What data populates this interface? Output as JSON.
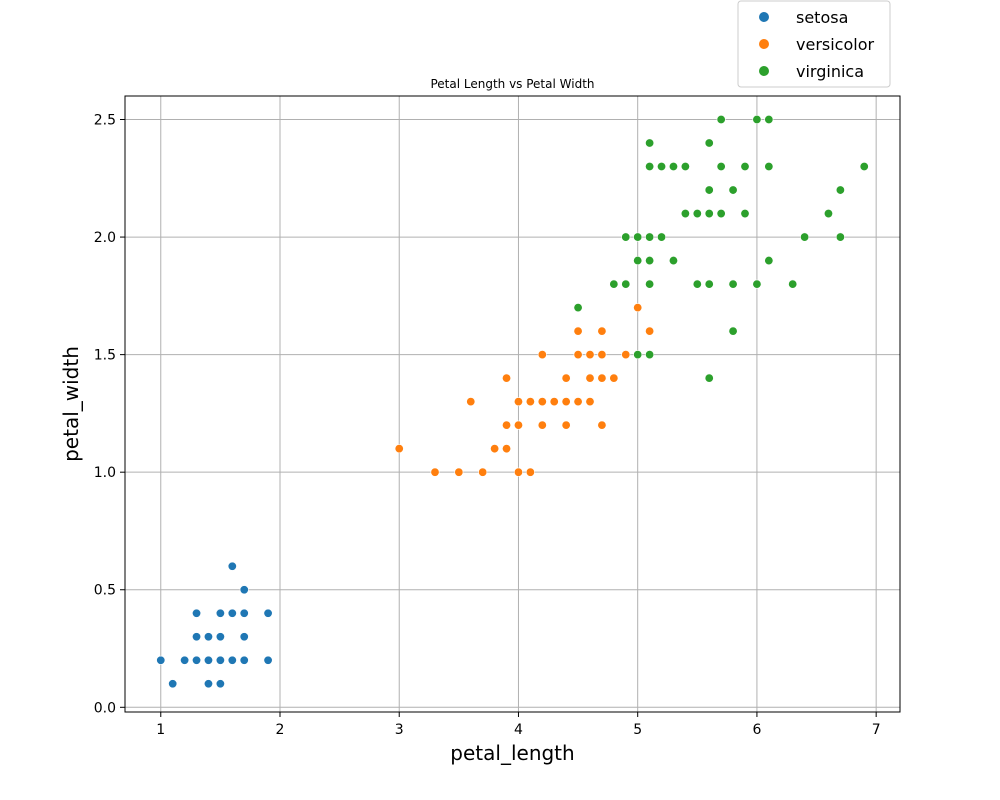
{
  "chart_data": {
    "type": "scatter",
    "title": "Petal Length vs Petal Width",
    "xlabel": "petal_length",
    "ylabel": "petal_width",
    "xlim": [
      0.7,
      7.2
    ],
    "ylim": [
      -0.02,
      2.6
    ],
    "x_ticks": [
      1,
      2,
      3,
      4,
      5,
      6,
      7
    ],
    "x_tick_labels": [
      "1",
      "2",
      "3",
      "4",
      "5",
      "6",
      "7"
    ],
    "y_ticks": [
      0.0,
      0.5,
      1.0,
      1.5,
      2.0,
      2.5
    ],
    "y_tick_labels": [
      "0.0",
      "0.5",
      "1.0",
      "1.5",
      "2.0",
      "2.5"
    ],
    "grid": true,
    "legend_position": "above top-right",
    "series": [
      {
        "name": "setosa",
        "color": "#1f77b4",
        "points": [
          [
            1.0,
            0.2
          ],
          [
            1.1,
            0.1
          ],
          [
            1.2,
            0.2
          ],
          [
            1.3,
            0.4
          ],
          [
            1.3,
            0.3
          ],
          [
            1.3,
            0.2
          ],
          [
            1.4,
            0.3
          ],
          [
            1.4,
            0.2
          ],
          [
            1.4,
            0.1
          ],
          [
            1.5,
            0.4
          ],
          [
            1.5,
            0.3
          ],
          [
            1.5,
            0.2
          ],
          [
            1.5,
            0.1
          ],
          [
            1.6,
            0.6
          ],
          [
            1.6,
            0.4
          ],
          [
            1.6,
            0.2
          ],
          [
            1.7,
            0.5
          ],
          [
            1.7,
            0.4
          ],
          [
            1.7,
            0.3
          ],
          [
            1.7,
            0.2
          ],
          [
            1.9,
            0.4
          ],
          [
            1.9,
            0.2
          ]
        ]
      },
      {
        "name": "versicolor",
        "color": "#ff7f0e",
        "points": [
          [
            3.0,
            1.1
          ],
          [
            3.3,
            1.0
          ],
          [
            3.5,
            1.0
          ],
          [
            3.6,
            1.3
          ],
          [
            3.7,
            1.0
          ],
          [
            3.8,
            1.1
          ],
          [
            3.9,
            1.4
          ],
          [
            3.9,
            1.2
          ],
          [
            3.9,
            1.1
          ],
          [
            4.0,
            1.3
          ],
          [
            4.0,
            1.2
          ],
          [
            4.0,
            1.0
          ],
          [
            4.1,
            1.3
          ],
          [
            4.1,
            1.0
          ],
          [
            4.2,
            1.5
          ],
          [
            4.2,
            1.3
          ],
          [
            4.2,
            1.2
          ],
          [
            4.3,
            1.3
          ],
          [
            4.4,
            1.4
          ],
          [
            4.4,
            1.3
          ],
          [
            4.4,
            1.2
          ],
          [
            4.5,
            1.6
          ],
          [
            4.5,
            1.5
          ],
          [
            4.5,
            1.3
          ],
          [
            4.6,
            1.5
          ],
          [
            4.6,
            1.4
          ],
          [
            4.6,
            1.3
          ],
          [
            4.7,
            1.6
          ],
          [
            4.7,
            1.5
          ],
          [
            4.7,
            1.4
          ],
          [
            4.7,
            1.2
          ],
          [
            4.8,
            1.4
          ],
          [
            4.9,
            1.5
          ],
          [
            5.0,
            1.7
          ],
          [
            5.1,
            1.6
          ]
        ]
      },
      {
        "name": "virginica",
        "color": "#2ca02c",
        "points": [
          [
            4.5,
            1.7
          ],
          [
            4.8,
            1.8
          ],
          [
            4.9,
            2.0
          ],
          [
            4.9,
            1.8
          ],
          [
            5.0,
            2.0
          ],
          [
            5.0,
            1.9
          ],
          [
            5.0,
            1.5
          ],
          [
            5.1,
            2.4
          ],
          [
            5.1,
            2.3
          ],
          [
            5.1,
            2.0
          ],
          [
            5.1,
            1.9
          ],
          [
            5.1,
            1.8
          ],
          [
            5.1,
            1.5
          ],
          [
            5.2,
            2.3
          ],
          [
            5.2,
            2.0
          ],
          [
            5.3,
            2.3
          ],
          [
            5.3,
            1.9
          ],
          [
            5.4,
            2.3
          ],
          [
            5.4,
            2.1
          ],
          [
            5.5,
            2.1
          ],
          [
            5.5,
            1.8
          ],
          [
            5.6,
            2.4
          ],
          [
            5.6,
            2.2
          ],
          [
            5.6,
            2.1
          ],
          [
            5.6,
            1.8
          ],
          [
            5.6,
            1.4
          ],
          [
            5.7,
            2.5
          ],
          [
            5.7,
            2.3
          ],
          [
            5.7,
            2.1
          ],
          [
            5.8,
            2.2
          ],
          [
            5.8,
            1.8
          ],
          [
            5.8,
            1.6
          ],
          [
            5.9,
            2.3
          ],
          [
            5.9,
            2.1
          ],
          [
            6.0,
            2.5
          ],
          [
            6.0,
            1.8
          ],
          [
            6.1,
            2.5
          ],
          [
            6.1,
            2.3
          ],
          [
            6.1,
            1.9
          ],
          [
            6.3,
            1.8
          ],
          [
            6.4,
            2.0
          ],
          [
            6.6,
            2.1
          ],
          [
            6.7,
            2.2
          ],
          [
            6.7,
            2.0
          ],
          [
            6.9,
            2.3
          ]
        ]
      }
    ]
  }
}
